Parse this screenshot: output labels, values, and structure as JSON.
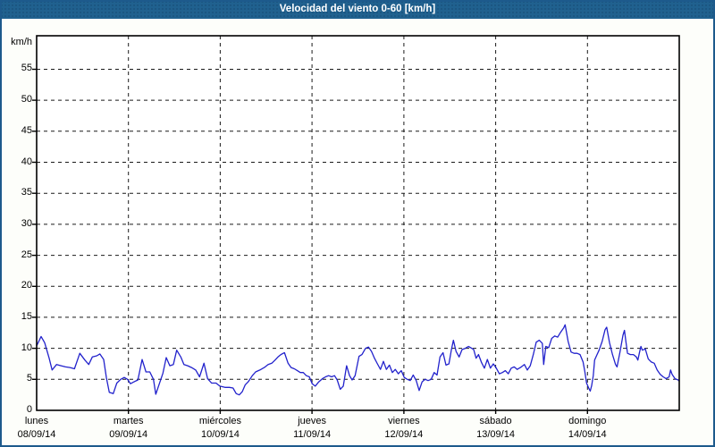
{
  "header": {
    "title": "Velocidad del viento 0-60 [km/h]"
  },
  "colors": {
    "frame_border": "#1d5a8c",
    "titlebar_bg": "#20618f",
    "titlebar_text": "#ffffff",
    "page_bg": "#fdfefa",
    "plot_bg": "#ffffff",
    "grid": "#1a1a1a",
    "axis": "#000000",
    "line": "#2222cc"
  },
  "chart_data": {
    "type": "line",
    "title": "Velocidad del viento 0-60 [km/h]",
    "unit": "km/h",
    "xlabel": "",
    "ylabel": "km/h",
    "ylim": [
      0,
      60.4
    ],
    "y_ticks": [
      0,
      5,
      10,
      15,
      20,
      25,
      30,
      35,
      40,
      45,
      50,
      55
    ],
    "grid": "dashed",
    "legend_position": "none",
    "x_categories": [
      {
        "day": "lunes",
        "date": "08/09/14"
      },
      {
        "day": "martes",
        "date": "09/09/14"
      },
      {
        "day": "miércoles",
        "date": "10/09/14"
      },
      {
        "day": "jueves",
        "date": "11/09/14"
      },
      {
        "day": "viernes",
        "date": "12/09/14"
      },
      {
        "day": "sábado",
        "date": "13/09/14"
      },
      {
        "day": "domingo",
        "date": "14/09/14"
      }
    ],
    "series": [
      {
        "name": "Velocidad del viento",
        "color": "#2222cc",
        "x_unit": "days_from_2014-09-08",
        "points": [
          [
            0.0,
            10.4
          ],
          [
            0.049,
            11.9
          ],
          [
            0.088,
            10.9
          ],
          [
            0.136,
            8.4
          ],
          [
            0.168,
            6.5
          ],
          [
            0.217,
            7.4
          ],
          [
            0.266,
            7.2
          ],
          [
            0.314,
            7.0
          ],
          [
            0.363,
            6.9
          ],
          [
            0.412,
            6.7
          ],
          [
            0.47,
            9.2
          ],
          [
            0.526,
            8.1
          ],
          [
            0.568,
            7.4
          ],
          [
            0.607,
            8.6
          ],
          [
            0.655,
            8.8
          ],
          [
            0.688,
            9.1
          ],
          [
            0.73,
            8.2
          ],
          [
            0.759,
            5.3
          ],
          [
            0.792,
            2.9
          ],
          [
            0.834,
            2.7
          ],
          [
            0.873,
            4.4
          ],
          [
            0.915,
            5.0
          ],
          [
            0.954,
            5.3
          ],
          [
            0.99,
            5.0
          ],
          [
            1.022,
            4.3
          ],
          [
            1.061,
            4.6
          ],
          [
            1.103,
            4.9
          ],
          [
            1.149,
            8.2
          ],
          [
            1.191,
            6.2
          ],
          [
            1.233,
            6.2
          ],
          [
            1.272,
            5.0
          ],
          [
            1.298,
            2.6
          ],
          [
            1.337,
            4.3
          ],
          [
            1.376,
            6.0
          ],
          [
            1.412,
            8.5
          ],
          [
            1.451,
            7.2
          ],
          [
            1.49,
            7.4
          ],
          [
            1.526,
            9.7
          ],
          [
            1.57,
            8.6
          ],
          [
            1.604,
            7.4
          ],
          [
            1.645,
            7.2
          ],
          [
            1.687,
            6.9
          ],
          [
            1.733,
            6.5
          ],
          [
            1.775,
            5.4
          ],
          [
            1.823,
            7.6
          ],
          [
            1.862,
            5.1
          ],
          [
            1.905,
            4.4
          ],
          [
            1.954,
            4.4
          ],
          [
            1.996,
            3.9
          ],
          [
            2.051,
            3.7
          ],
          [
            2.1,
            3.7
          ],
          [
            2.139,
            3.6
          ],
          [
            2.174,
            2.7
          ],
          [
            2.207,
            2.5
          ],
          [
            2.239,
            3.0
          ],
          [
            2.271,
            4.1
          ],
          [
            2.304,
            4.6
          ],
          [
            2.349,
            5.6
          ],
          [
            2.385,
            6.2
          ],
          [
            2.431,
            6.5
          ],
          [
            2.48,
            6.9
          ],
          [
            2.522,
            7.4
          ],
          [
            2.561,
            7.6
          ],
          [
            2.597,
            8.1
          ],
          [
            2.629,
            8.6
          ],
          [
            2.661,
            9.0
          ],
          [
            2.7,
            9.3
          ],
          [
            2.739,
            7.6
          ],
          [
            2.772,
            6.9
          ],
          [
            2.807,
            6.7
          ],
          [
            2.84,
            6.4
          ],
          [
            2.872,
            6.1
          ],
          [
            2.904,
            6.1
          ],
          [
            2.937,
            5.6
          ],
          [
            2.97,
            5.4
          ],
          [
            3.002,
            4.3
          ],
          [
            3.035,
            3.9
          ],
          [
            3.074,
            4.6
          ],
          [
            3.113,
            5.1
          ],
          [
            3.148,
            5.4
          ],
          [
            3.181,
            5.6
          ],
          [
            3.213,
            5.4
          ],
          [
            3.245,
            5.6
          ],
          [
            3.274,
            4.9
          ],
          [
            3.307,
            3.4
          ],
          [
            3.34,
            3.9
          ],
          [
            3.376,
            7.2
          ],
          [
            3.408,
            5.6
          ],
          [
            3.437,
            4.9
          ],
          [
            3.469,
            5.6
          ],
          [
            3.512,
            8.7
          ],
          [
            3.544,
            9.0
          ],
          [
            3.583,
            10.0
          ],
          [
            3.615,
            10.2
          ],
          [
            3.648,
            9.5
          ],
          [
            3.68,
            8.4
          ],
          [
            3.712,
            7.5
          ],
          [
            3.745,
            6.6
          ],
          [
            3.777,
            7.9
          ],
          [
            3.81,
            6.6
          ],
          [
            3.843,
            7.3
          ],
          [
            3.875,
            6.1
          ],
          [
            3.907,
            6.6
          ],
          [
            3.94,
            5.9
          ],
          [
            3.972,
            6.4
          ],
          [
            4.004,
            5.3
          ],
          [
            4.037,
            5.0
          ],
          [
            4.07,
            4.8
          ],
          [
            4.102,
            5.7
          ],
          [
            4.135,
            4.8
          ],
          [
            4.167,
            3.2
          ],
          [
            4.199,
            4.6
          ],
          [
            4.232,
            5.0
          ],
          [
            4.264,
            4.8
          ],
          [
            4.297,
            5.0
          ],
          [
            4.33,
            6.1
          ],
          [
            4.362,
            5.7
          ],
          [
            4.394,
            8.6
          ],
          [
            4.427,
            9.3
          ],
          [
            4.459,
            7.3
          ],
          [
            4.491,
            7.5
          ],
          [
            4.518,
            9.8
          ],
          [
            4.54,
            11.3
          ],
          [
            4.569,
            9.5
          ],
          [
            4.602,
            8.6
          ],
          [
            4.634,
            9.8
          ],
          [
            4.67,
            10.0
          ],
          [
            4.703,
            10.3
          ],
          [
            4.729,
            10.1
          ],
          [
            4.761,
            9.8
          ],
          [
            4.787,
            8.4
          ],
          [
            4.813,
            9.0
          ],
          [
            4.846,
            7.7
          ],
          [
            4.878,
            6.8
          ],
          [
            4.91,
            8.2
          ],
          [
            4.943,
            6.8
          ],
          [
            4.975,
            7.5
          ],
          [
            5.007,
            6.8
          ],
          [
            5.04,
            5.9
          ],
          [
            5.073,
            6.1
          ],
          [
            5.105,
            6.4
          ],
          [
            5.138,
            5.9
          ],
          [
            5.17,
            6.8
          ],
          [
            5.202,
            7.0
          ],
          [
            5.235,
            6.6
          ],
          [
            5.28,
            7.0
          ],
          [
            5.313,
            7.4
          ],
          [
            5.345,
            6.5
          ],
          [
            5.377,
            7.2
          ],
          [
            5.41,
            9.0
          ],
          [
            5.442,
            11.0
          ],
          [
            5.475,
            11.3
          ],
          [
            5.508,
            10.8
          ],
          [
            5.523,
            7.4
          ],
          [
            5.546,
            10.3
          ],
          [
            5.578,
            10.1
          ],
          [
            5.611,
            11.6
          ],
          [
            5.644,
            12.0
          ],
          [
            5.676,
            11.8
          ],
          [
            5.708,
            12.6
          ],
          [
            5.741,
            13.3
          ],
          [
            5.757,
            13.8
          ],
          [
            5.79,
            11.1
          ],
          [
            5.822,
            9.4
          ],
          [
            5.854,
            9.2
          ],
          [
            5.887,
            9.2
          ],
          [
            5.919,
            9.0
          ],
          [
            5.952,
            7.8
          ],
          [
            5.971,
            6.3
          ],
          [
            5.99,
            4.4
          ],
          [
            6.017,
            3.5
          ],
          [
            6.03,
            3.1
          ],
          [
            6.046,
            4.0
          ],
          [
            6.063,
            5.6
          ],
          [
            6.078,
            8.1
          ],
          [
            6.098,
            8.8
          ],
          [
            6.127,
            9.7
          ],
          [
            6.16,
            11.1
          ],
          [
            6.192,
            13.0
          ],
          [
            6.209,
            13.4
          ],
          [
            6.241,
            10.9
          ],
          [
            6.273,
            9.0
          ],
          [
            6.306,
            7.4
          ],
          [
            6.322,
            7.0
          ],
          [
            6.355,
            9.4
          ],
          [
            6.387,
            12.1
          ],
          [
            6.403,
            12.9
          ],
          [
            6.419,
            11.1
          ],
          [
            6.436,
            9.2
          ],
          [
            6.468,
            9.0
          ],
          [
            6.501,
            9.0
          ],
          [
            6.533,
            8.6
          ],
          [
            6.549,
            8.1
          ],
          [
            6.565,
            9.2
          ],
          [
            6.582,
            10.3
          ],
          [
            6.598,
            9.7
          ],
          [
            6.63,
            9.9
          ],
          [
            6.662,
            8.3
          ],
          [
            6.695,
            7.8
          ],
          [
            6.727,
            7.6
          ],
          [
            6.76,
            6.5
          ],
          [
            6.793,
            5.8
          ],
          [
            6.825,
            5.4
          ],
          [
            6.857,
            5.1
          ],
          [
            6.89,
            5.4
          ],
          [
            6.906,
            6.5
          ],
          [
            6.922,
            5.8
          ],
          [
            6.954,
            5.1
          ],
          [
            6.988,
            4.9
          ],
          [
            7.0,
            4.7
          ]
        ]
      }
    ]
  }
}
